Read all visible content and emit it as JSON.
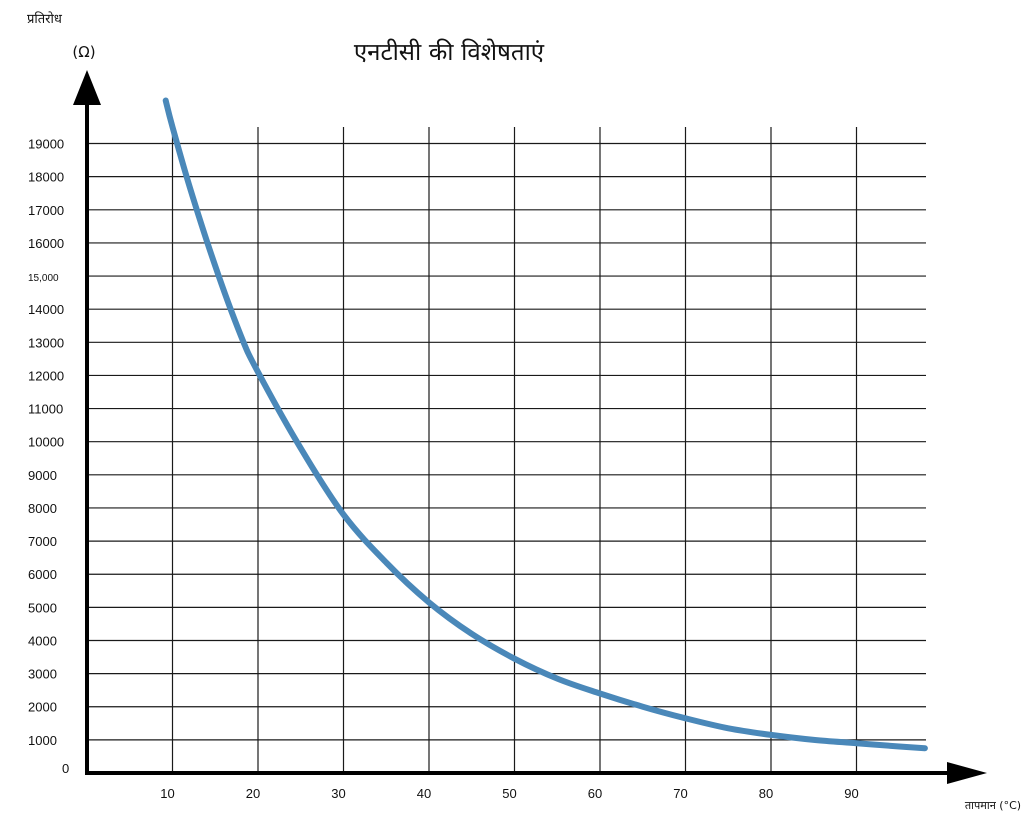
{
  "chart_data": {
    "type": "line",
    "title": "एनटीसी की विशेषताएं",
    "ylabel": "प्रतिरोध",
    "yunit": "(Ω)",
    "xlabel": "तापमान (°C)",
    "xlim": [
      0,
      98
    ],
    "ylim": [
      0,
      19000
    ],
    "x_ticks": [
      10,
      20,
      30,
      40,
      50,
      60,
      70,
      80,
      90
    ],
    "y_ticks": [
      {
        "value": 0,
        "label": "0"
      },
      {
        "value": 1000,
        "label": "1000"
      },
      {
        "value": 2000,
        "label": "2000"
      },
      {
        "value": 3000,
        "label": "3000"
      },
      {
        "value": 4000,
        "label": "4000"
      },
      {
        "value": 5000,
        "label": "5000"
      },
      {
        "value": 6000,
        "label": "6000"
      },
      {
        "value": 7000,
        "label": "7000"
      },
      {
        "value": 8000,
        "label": "8000"
      },
      {
        "value": 9000,
        "label": "9000"
      },
      {
        "value": 10000,
        "label": "10000"
      },
      {
        "value": 11000,
        "label": "11000"
      },
      {
        "value": 12000,
        "label": "12000"
      },
      {
        "value": 13000,
        "label": "13000"
      },
      {
        "value": 14000,
        "label": "14000"
      },
      {
        "value": 15000,
        "label": "15,000"
      },
      {
        "value": 16000,
        "label": "16000"
      },
      {
        "value": 17000,
        "label": "17000"
      },
      {
        "value": 18000,
        "label": "18000"
      },
      {
        "value": 19000,
        "label": "19000"
      }
    ],
    "grid": true,
    "line_color": "#4a88b9",
    "series": [
      {
        "x": [
          9.2,
          10,
          12,
          15,
          18,
          20,
          25,
          30,
          35,
          40,
          45,
          50,
          55,
          60,
          65,
          70,
          75,
          80,
          85,
          90,
          95,
          98
        ],
        "y": [
          20300,
          19500,
          17700,
          15300,
          13200,
          12100,
          9800,
          7800,
          6350,
          5150,
          4200,
          3450,
          2850,
          2400,
          2000,
          1650,
          1350,
          1150,
          1000,
          900,
          800,
          750
        ]
      }
    ]
  }
}
